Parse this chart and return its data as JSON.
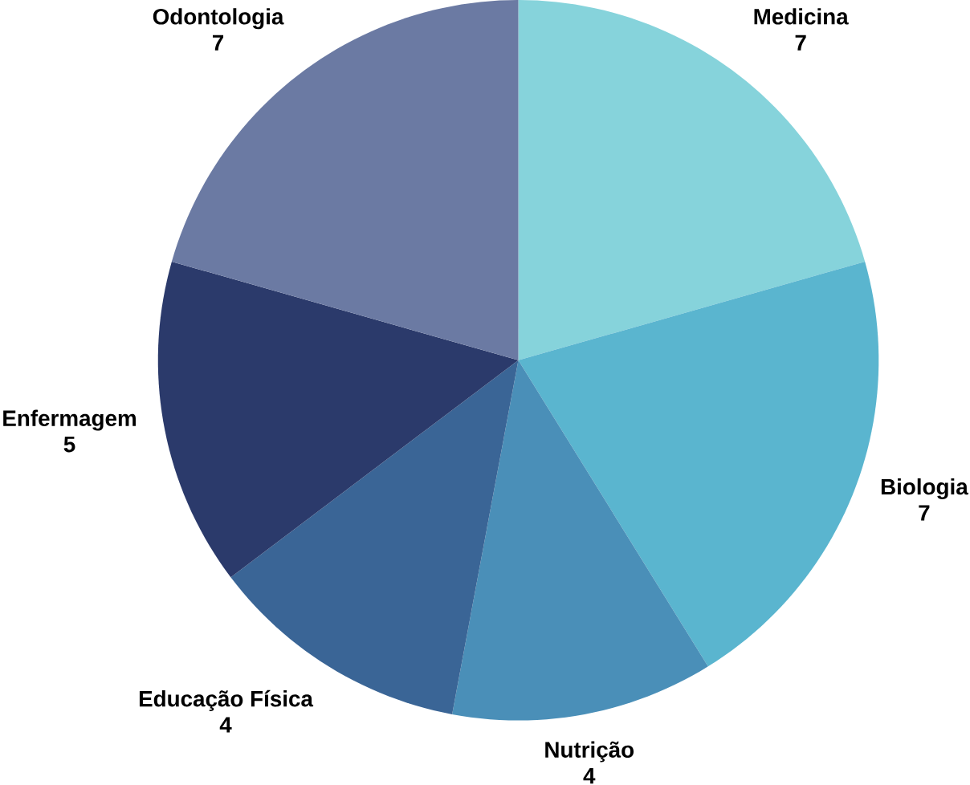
{
  "chart_data": {
    "type": "pie",
    "categories": [
      "Medicina",
      "Biologia",
      "Nutrição",
      "Educação Física",
      "Enfermagem",
      "Odontologia"
    ],
    "values": [
      7,
      7,
      4,
      4,
      5,
      7
    ],
    "colors": [
      "#86d3db",
      "#5ab5cf",
      "#4a8fb8",
      "#3a6596",
      "#2b3a6b",
      "#6b7aa3"
    ],
    "data_labels": true
  }
}
